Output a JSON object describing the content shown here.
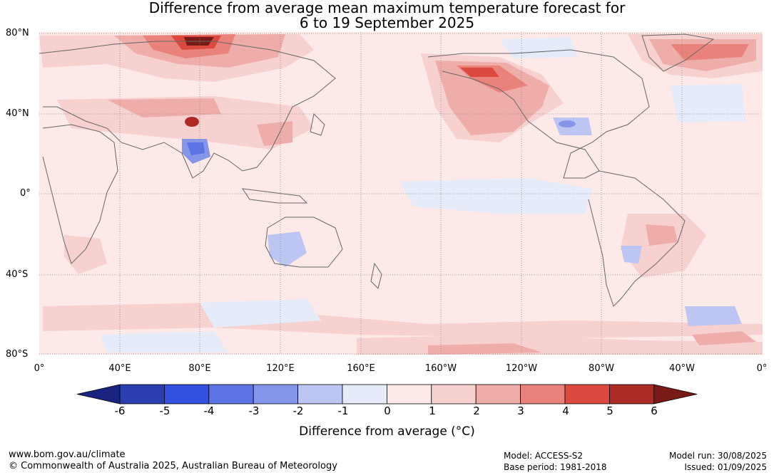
{
  "title_line1": "Difference from average mean maximum temperature forecast for",
  "title_line2": "6 to 19 September 2025",
  "lat_labels": [
    "80°N",
    "40°N",
    "0°",
    "40°S",
    "80°S"
  ],
  "lon_labels": [
    "0°",
    "40°E",
    "80°E",
    "120°E",
    "160°E",
    "160°W",
    "120°W",
    "80°W",
    "40°W",
    "0°"
  ],
  "colorbar": {
    "ticks": [
      "-6",
      "-5",
      "-4",
      "-3",
      "-2",
      "-1",
      "0",
      "1",
      "2",
      "3",
      "4",
      "5",
      "6"
    ],
    "label": "Difference from average (°C)",
    "colors": [
      "#1a237e",
      "#2a3eb1",
      "#3350e0",
      "#5c73e6",
      "#8595ea",
      "#bdc6f2",
      "#e6ebfa",
      "#fce9e8",
      "#f6d1cf",
      "#efadaa",
      "#e8827b",
      "#dc4a3f",
      "#ae2a25",
      "#7a1a17"
    ]
  },
  "footer": {
    "website": "www.bom.gov.au/climate",
    "copyright": "© Commonwealth of Australia 2025, Australian Bureau of Meteorology",
    "model": "Model: ACCESS-S2",
    "base_period": "Base period: 1981-2018",
    "model_run": "Model run: 30/08/2025",
    "issued": "Issued: 01/09/2025"
  }
}
